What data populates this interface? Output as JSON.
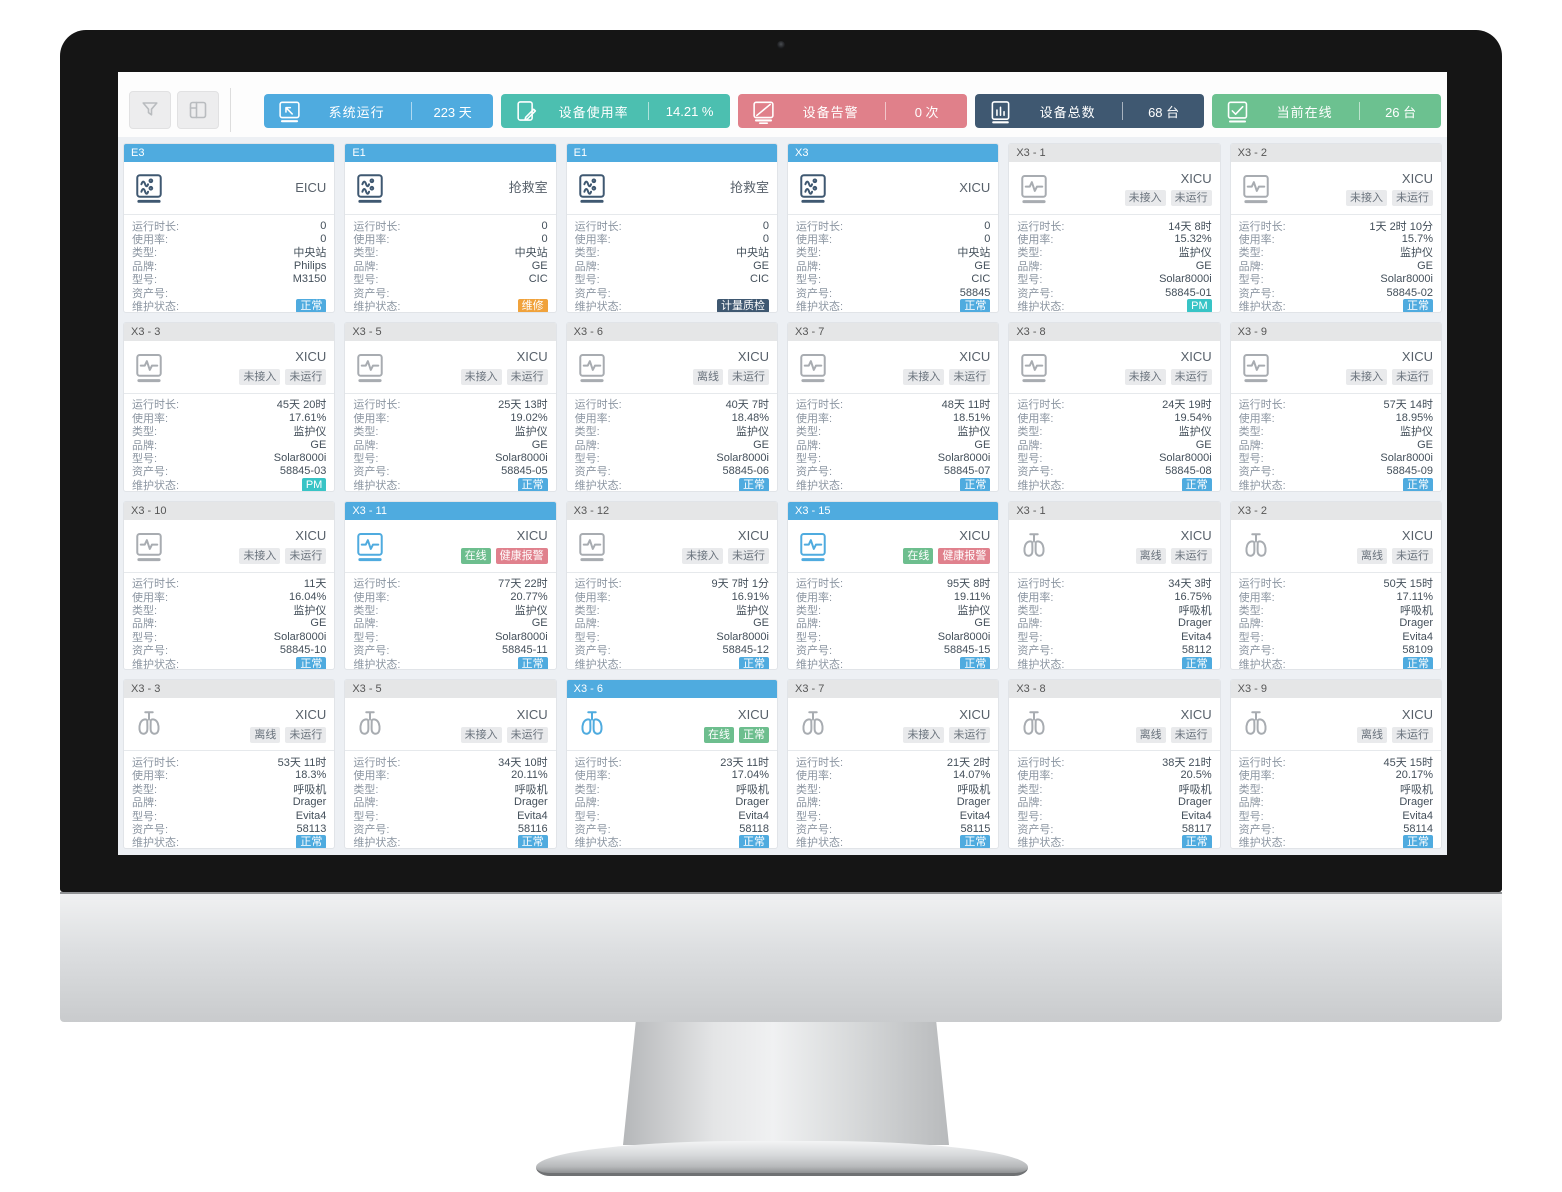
{
  "toolbar": {
    "buttons": [
      {
        "name": "filter-button",
        "icon": "filter-icon"
      },
      {
        "name": "layout-button",
        "icon": "layout-icon"
      }
    ],
    "stats": [
      {
        "icon": "system-run-icon",
        "label": "系统运行",
        "value": "223 天",
        "color": "#4fabdf"
      },
      {
        "icon": "device-usage-icon",
        "label": "设备使用率",
        "value": "14.21 %",
        "color": "#4cbfb0"
      },
      {
        "icon": "device-alarm-icon",
        "label": "设备告警",
        "value": "0 次",
        "color": "#e0808a"
      },
      {
        "icon": "device-total-icon",
        "label": "设备总数",
        "value": "68 台",
        "color": "#3f5871"
      },
      {
        "icon": "online-icon",
        "label": "当前在线",
        "value": "26 台",
        "color": "#6cc190"
      }
    ]
  },
  "card_field_labels": [
    "运行时长:",
    "使用率:",
    "类型:",
    "品牌:",
    "型号:",
    "资产号:",
    "维护状态:"
  ],
  "cards": [
    {
      "id": "E3",
      "header": "blue",
      "icon": "central-station-icon",
      "tone": "navy",
      "location": "EICU",
      "badges": [],
      "values": [
        "0",
        "0",
        "中央站",
        "Philips",
        "M3150",
        ""
      ],
      "maintenance": {
        "text": "正常",
        "type": "blue"
      }
    },
    {
      "id": "E1",
      "header": "blue",
      "icon": "central-station-icon",
      "tone": "navy",
      "location": "抢救室",
      "badges": [],
      "values": [
        "0",
        "0",
        "中央站",
        "GE",
        "CIC",
        ""
      ],
      "maintenance": {
        "text": "维修",
        "type": "orange"
      }
    },
    {
      "id": "E1",
      "header": "blue",
      "icon": "central-station-icon",
      "tone": "navy",
      "location": "抢救室",
      "badges": [],
      "values": [
        "0",
        "0",
        "中央站",
        "GE",
        "CIC",
        ""
      ],
      "maintenance": {
        "text": "计量质检",
        "type": "navy"
      }
    },
    {
      "id": "X3",
      "header": "blue",
      "icon": "central-station-icon",
      "tone": "navy",
      "location": "XICU",
      "badges": [],
      "values": [
        "0",
        "0",
        "中央站",
        "GE",
        "CIC",
        "58845"
      ],
      "maintenance": {
        "text": "正常",
        "type": "blue"
      }
    },
    {
      "id": "X3 - 1",
      "header": "gray",
      "icon": "monitor-icon",
      "tone": "gray",
      "location": "XICU",
      "badges": [
        {
          "text": "未接入",
          "type": "gray"
        },
        {
          "text": "未运行",
          "type": "gray"
        }
      ],
      "values": [
        "14天 8时",
        "15.32%",
        "监护仪",
        "GE",
        "Solar8000i",
        "58845-01"
      ],
      "maintenance": {
        "text": "PM",
        "type": "teal"
      }
    },
    {
      "id": "X3 - 2",
      "header": "gray",
      "icon": "monitor-icon",
      "tone": "gray",
      "location": "XICU",
      "badges": [
        {
          "text": "未接入",
          "type": "gray"
        },
        {
          "text": "未运行",
          "type": "gray"
        }
      ],
      "values": [
        "1天 2时 10分",
        "15.7%",
        "监护仪",
        "GE",
        "Solar8000i",
        "58845-02"
      ],
      "maintenance": {
        "text": "正常",
        "type": "blue"
      }
    },
    {
      "id": "X3 - 3",
      "header": "gray",
      "icon": "monitor-icon",
      "tone": "gray",
      "location": "XICU",
      "badges": [
        {
          "text": "未接入",
          "type": "gray"
        },
        {
          "text": "未运行",
          "type": "gray"
        }
      ],
      "values": [
        "45天 20时",
        "17.61%",
        "监护仪",
        "GE",
        "Solar8000i",
        "58845-03"
      ],
      "maintenance": {
        "text": "PM",
        "type": "teal"
      }
    },
    {
      "id": "X3 - 5",
      "header": "gray",
      "icon": "monitor-icon",
      "tone": "gray",
      "location": "XICU",
      "badges": [
        {
          "text": "未接入",
          "type": "gray"
        },
        {
          "text": "未运行",
          "type": "gray"
        }
      ],
      "values": [
        "25天 13时",
        "19.02%",
        "监护仪",
        "GE",
        "Solar8000i",
        "58845-05"
      ],
      "maintenance": {
        "text": "正常",
        "type": "blue"
      }
    },
    {
      "id": "X3 - 6",
      "header": "gray",
      "icon": "monitor-icon",
      "tone": "gray",
      "location": "XICU",
      "badges": [
        {
          "text": "离线",
          "type": "gray"
        },
        {
          "text": "未运行",
          "type": "gray"
        }
      ],
      "values": [
        "40天 7时",
        "18.48%",
        "监护仪",
        "GE",
        "Solar8000i",
        "58845-06"
      ],
      "maintenance": {
        "text": "正常",
        "type": "blue"
      }
    },
    {
      "id": "X3 - 7",
      "header": "gray",
      "icon": "monitor-icon",
      "tone": "gray",
      "location": "XICU",
      "badges": [
        {
          "text": "未接入",
          "type": "gray"
        },
        {
          "text": "未运行",
          "type": "gray"
        }
      ],
      "values": [
        "48天 11时",
        "18.51%",
        "监护仪",
        "GE",
        "Solar8000i",
        "58845-07"
      ],
      "maintenance": {
        "text": "正常",
        "type": "blue"
      }
    },
    {
      "id": "X3 - 8",
      "header": "gray",
      "icon": "monitor-icon",
      "tone": "gray",
      "location": "XICU",
      "badges": [
        {
          "text": "未接入",
          "type": "gray"
        },
        {
          "text": "未运行",
          "type": "gray"
        }
      ],
      "values": [
        "24天 19时",
        "19.54%",
        "监护仪",
        "GE",
        "Solar8000i",
        "58845-08"
      ],
      "maintenance": {
        "text": "正常",
        "type": "blue"
      }
    },
    {
      "id": "X3 - 9",
      "header": "gray",
      "icon": "monitor-icon",
      "tone": "gray",
      "location": "XICU",
      "badges": [
        {
          "text": "未接入",
          "type": "gray"
        },
        {
          "text": "未运行",
          "type": "gray"
        }
      ],
      "values": [
        "57天 14时",
        "18.95%",
        "监护仪",
        "GE",
        "Solar8000i",
        "58845-09"
      ],
      "maintenance": {
        "text": "正常",
        "type": "blue"
      }
    },
    {
      "id": "X3 - 10",
      "header": "gray",
      "icon": "monitor-icon",
      "tone": "gray",
      "location": "XICU",
      "badges": [
        {
          "text": "未接入",
          "type": "gray"
        },
        {
          "text": "未运行",
          "type": "gray"
        }
      ],
      "values": [
        "11天",
        "16.04%",
        "监护仪",
        "GE",
        "Solar8000i",
        "58845-10"
      ],
      "maintenance": {
        "text": "正常",
        "type": "blue"
      }
    },
    {
      "id": "X3 - 11",
      "header": "blue",
      "icon": "monitor-icon",
      "tone": "blue",
      "location": "XICU",
      "badges": [
        {
          "text": "在线",
          "type": "green"
        },
        {
          "text": "健康报警",
          "type": "red"
        }
      ],
      "values": [
        "77天 22时",
        "20.77%",
        "监护仪",
        "GE",
        "Solar8000i",
        "58845-11"
      ],
      "maintenance": {
        "text": "正常",
        "type": "blue"
      }
    },
    {
      "id": "X3 - 12",
      "header": "gray",
      "icon": "monitor-icon",
      "tone": "gray",
      "location": "XICU",
      "badges": [
        {
          "text": "未接入",
          "type": "gray"
        },
        {
          "text": "未运行",
          "type": "gray"
        }
      ],
      "values": [
        "9天 7时 1分",
        "16.91%",
        "监护仪",
        "GE",
        "Solar8000i",
        "58845-12"
      ],
      "maintenance": {
        "text": "正常",
        "type": "blue"
      }
    },
    {
      "id": "X3 - 15",
      "header": "blue",
      "icon": "monitor-icon",
      "tone": "blue",
      "location": "XICU",
      "badges": [
        {
          "text": "在线",
          "type": "green"
        },
        {
          "text": "健康报警",
          "type": "red"
        }
      ],
      "values": [
        "95天 8时",
        "19.11%",
        "监护仪",
        "GE",
        "Solar8000i",
        "58845-15"
      ],
      "maintenance": {
        "text": "正常",
        "type": "blue"
      }
    },
    {
      "id": "X3 - 1",
      "header": "gray",
      "icon": "ventilator-icon",
      "tone": "gray",
      "location": "XICU",
      "badges": [
        {
          "text": "离线",
          "type": "gray"
        },
        {
          "text": "未运行",
          "type": "gray"
        }
      ],
      "values": [
        "34天 3时",
        "16.75%",
        "呼吸机",
        "Drager",
        "Evita4",
        "58112"
      ],
      "maintenance": {
        "text": "正常",
        "type": "blue"
      }
    },
    {
      "id": "X3 - 2",
      "header": "gray",
      "icon": "ventilator-icon",
      "tone": "gray",
      "location": "XICU",
      "badges": [
        {
          "text": "离线",
          "type": "gray"
        },
        {
          "text": "未运行",
          "type": "gray"
        }
      ],
      "values": [
        "50天 15时",
        "17.11%",
        "呼吸机",
        "Drager",
        "Evita4",
        "58109"
      ],
      "maintenance": {
        "text": "正常",
        "type": "blue"
      }
    },
    {
      "id": "X3 - 3",
      "header": "gray",
      "icon": "ventilator-icon",
      "tone": "gray",
      "location": "XICU",
      "badges": [
        {
          "text": "离线",
          "type": "gray"
        },
        {
          "text": "未运行",
          "type": "gray"
        }
      ],
      "values": [
        "53天 11时",
        "18.3%",
        "呼吸机",
        "Drager",
        "Evita4",
        "58113"
      ],
      "maintenance": {
        "text": "正常",
        "type": "blue"
      }
    },
    {
      "id": "X3 - 5",
      "header": "gray",
      "icon": "ventilator-icon",
      "tone": "gray",
      "location": "XICU",
      "badges": [
        {
          "text": "未接入",
          "type": "gray"
        },
        {
          "text": "未运行",
          "type": "gray"
        }
      ],
      "values": [
        "34天 10时",
        "20.11%",
        "呼吸机",
        "Drager",
        "Evita4",
        "58116"
      ],
      "maintenance": {
        "text": "正常",
        "type": "blue"
      }
    },
    {
      "id": "X3 - 6",
      "header": "blue",
      "icon": "ventilator-icon",
      "tone": "blue",
      "location": "XICU",
      "badges": [
        {
          "text": "在线",
          "type": "green"
        },
        {
          "text": "正常",
          "type": "green"
        }
      ],
      "values": [
        "23天 11时",
        "17.04%",
        "呼吸机",
        "Drager",
        "Evita4",
        "58118"
      ],
      "maintenance": {
        "text": "正常",
        "type": "blue"
      }
    },
    {
      "id": "X3 - 7",
      "header": "gray",
      "icon": "ventilator-icon",
      "tone": "gray",
      "location": "XICU",
      "badges": [
        {
          "text": "未接入",
          "type": "gray"
        },
        {
          "text": "未运行",
          "type": "gray"
        }
      ],
      "values": [
        "21天 2时",
        "14.07%",
        "呼吸机",
        "Drager",
        "Evita4",
        "58115"
      ],
      "maintenance": {
        "text": "正常",
        "type": "blue"
      }
    },
    {
      "id": "X3 - 8",
      "header": "gray",
      "icon": "ventilator-icon",
      "tone": "gray",
      "location": "XICU",
      "badges": [
        {
          "text": "离线",
          "type": "gray"
        },
        {
          "text": "未运行",
          "type": "gray"
        }
      ],
      "values": [
        "38天 21时",
        "20.5%",
        "呼吸机",
        "Drager",
        "Evita4",
        "58117"
      ],
      "maintenance": {
        "text": "正常",
        "type": "blue"
      }
    },
    {
      "id": "X3 - 9",
      "header": "gray",
      "icon": "ventilator-icon",
      "tone": "gray",
      "location": "XICU",
      "badges": [
        {
          "text": "离线",
          "type": "gray"
        },
        {
          "text": "未运行",
          "type": "gray"
        }
      ],
      "values": [
        "45天 15时",
        "20.17%",
        "呼吸机",
        "Drager",
        "Evita4",
        "58114"
      ],
      "maintenance": {
        "text": "正常",
        "type": "blue"
      }
    }
  ]
}
